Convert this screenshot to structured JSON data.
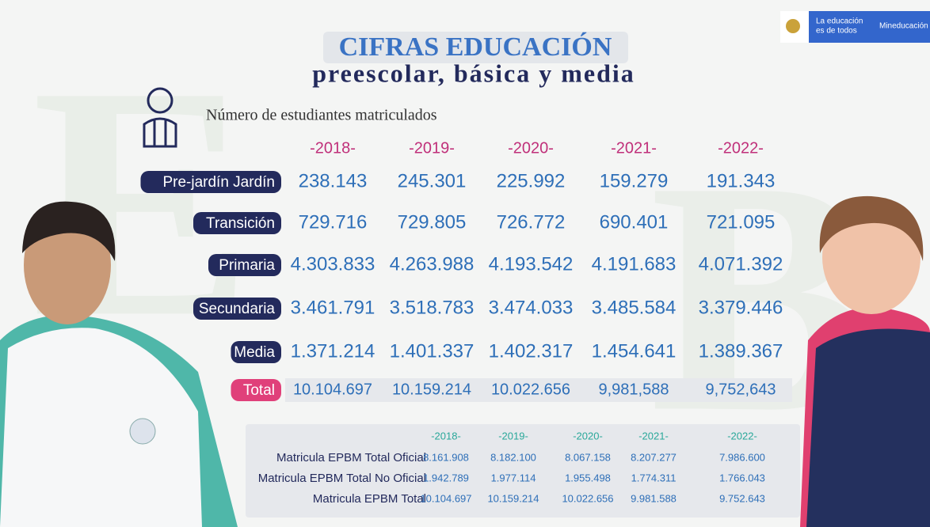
{
  "header": {
    "title": "CIFRAS EDUCACIÓN",
    "subtitle": "preescolar, básica y media",
    "caption": "Número de estudiantes matriculados"
  },
  "logo": {
    "line1": "La educación",
    "line2": "es de todos",
    "brand": "Mineducación"
  },
  "table": {
    "columns": [
      "-2018-",
      "-2019-",
      "-2020-",
      "-2021-",
      "-2022-"
    ],
    "rows": [
      {
        "label": "Pre-jardín Jardín",
        "values": [
          "238.143",
          "245.301",
          "225.992",
          "159.279",
          "191.343"
        ]
      },
      {
        "label": "Transición",
        "values": [
          "729.716",
          "729.805",
          "726.772",
          "690.401",
          "721.095"
        ]
      },
      {
        "label": "Primaria",
        "values": [
          "4.303.833",
          "4.263.988",
          "4.193.542",
          "4.191.683",
          "4.071.392"
        ]
      },
      {
        "label": "Secundaria",
        "values": [
          "3.461.791",
          "3.518.783",
          "3.474.033",
          "3.485.584",
          "3.379.446"
        ]
      },
      {
        "label": "Media",
        "values": [
          "1.371.214",
          "1.401.337",
          "1.402.317",
          "1.454.641",
          "1.389.367"
        ]
      },
      {
        "label": "Total",
        "values": [
          "10.104.697",
          "10.159.214",
          "10.022.656",
          "9,981,588",
          "9,752,643"
        ]
      }
    ]
  },
  "summary": {
    "columns": [
      "-2018-",
      "-2019-",
      "-2020-",
      "-2021-",
      "-2022-"
    ],
    "rows": [
      {
        "label": "Matricula EPBM Total Oficial",
        "values": [
          "8.161.908",
          "8.182.100",
          "8.067.158",
          "8.207.277",
          "7.986.600"
        ]
      },
      {
        "label": "Matricula EPBM Total No Oficial",
        "values": [
          "1.942.789",
          "1.977.114",
          "1.955.498",
          "1.774.311",
          "1.766.043"
        ]
      },
      {
        "label": "Matricula EPBM Total",
        "values": [
          "10.104.697",
          "10.159.214",
          "10.022.656",
          "9.981.588",
          "9.752.643"
        ]
      }
    ]
  }
}
